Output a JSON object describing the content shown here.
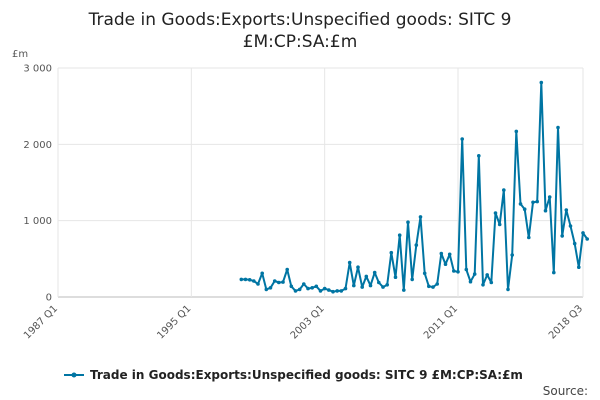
{
  "chart_data": {
    "type": "line",
    "title_lines": [
      "Trade in Goods:Exports:Unspecified goods: SITC 9",
      "£M:CP:SA:£m"
    ],
    "ylabel": "£m",
    "xlabel": "",
    "ylim": [
      0,
      3000
    ],
    "y_ticks": [
      0,
      1000,
      2000,
      3000
    ],
    "y_tick_labels": [
      "0",
      "1 000",
      "2 000",
      "3 000"
    ],
    "x_range": [
      1987.0,
      2018.5
    ],
    "x_ticks": [
      1987.0,
      1995.0,
      2003.0,
      2011.0,
      2018.5
    ],
    "x_tick_labels": [
      "1987 Q1",
      "1995 Q1",
      "2003 Q1",
      "2011 Q1",
      "2018 Q3"
    ],
    "grid": true,
    "legend": "bottom",
    "series": [
      {
        "name": "Trade in Goods:Exports:Unspecified goods: SITC 9 £M:CP:SA:£m",
        "color": "#0075a3",
        "start": 1998.0,
        "step": 0.25,
        "values": [
          230,
          230,
          225,
          210,
          170,
          310,
          100,
          120,
          210,
          190,
          195,
          360,
          140,
          80,
          100,
          170,
          110,
          120,
          140,
          80,
          110,
          90,
          70,
          80,
          80,
          110,
          450,
          150,
          390,
          130,
          270,
          150,
          320,
          190,
          130,
          160,
          580,
          260,
          810,
          90,
          980,
          230,
          680,
          1050,
          310,
          140,
          130,
          170,
          570,
          430,
          560,
          340,
          330,
          2070,
          360,
          200,
          300,
          1850,
          160,
          290,
          190,
          1100,
          950,
          1400,
          100,
          550,
          2170,
          1220,
          1150,
          780,
          1240,
          1250,
          2810,
          1130,
          1310,
          320,
          2220,
          800,
          1140,
          930,
          700,
          390,
          840,
          760
        ]
      }
    ]
  },
  "source_label": "Source:"
}
